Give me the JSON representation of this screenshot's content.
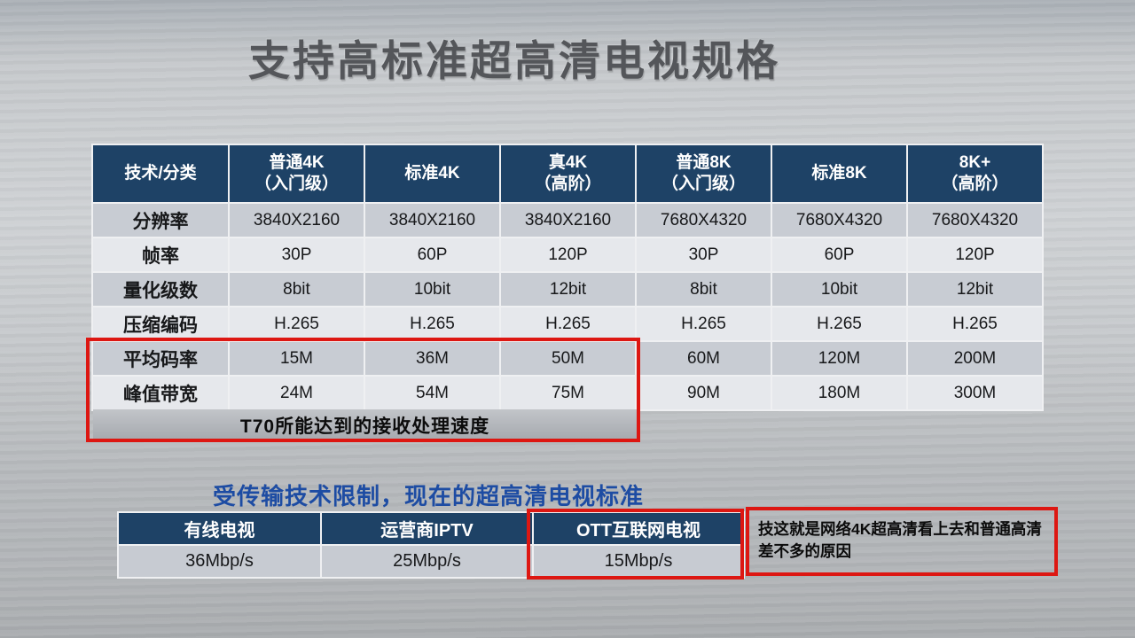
{
  "slide": {
    "title": "支持高标准超高清电视规格"
  },
  "colors": {
    "header_navy": "#1e4266",
    "band_dark": "#c8ccd3",
    "band_light": "#e6e8ec",
    "highlight_red": "#dd1712",
    "caption_blue": "#1d4ca3",
    "background_gray": "#c6c9cc"
  },
  "spec_table": {
    "corner_label": "技术/分类",
    "columns": [
      "普通4K\n（入门级）",
      "标准4K",
      "真4K\n（高阶）",
      "普通8K\n（入门级）",
      "标准8K",
      "8K+\n（高阶）"
    ],
    "rows": [
      {
        "label": "分辨率",
        "values": [
          "3840X2160",
          "3840X2160",
          "3840X2160",
          "7680X4320",
          "7680X4320",
          "7680X4320"
        ]
      },
      {
        "label": "帧率",
        "values": [
          "30P",
          "60P",
          "120P",
          "30P",
          "60P",
          "120P"
        ]
      },
      {
        "label": "量化级数",
        "values": [
          "8bit",
          "10bit",
          "12bit",
          "8bit",
          "10bit",
          "12bit"
        ]
      },
      {
        "label": "压缩编码",
        "values": [
          "H.265",
          "H.265",
          "H.265",
          "H.265",
          "H.265",
          "H.265"
        ]
      },
      {
        "label": "平均码率",
        "values": [
          "15M",
          "36M",
          "50M",
          "60M",
          "120M",
          "200M"
        ]
      },
      {
        "label": "峰值带宽",
        "values": [
          "24M",
          "54M",
          "75M",
          "90M",
          "180M",
          "300M"
        ]
      }
    ],
    "merged_note": "T70所能达到的接收处理速度"
  },
  "caption": "受传输技术限制，现在的超高清电视标准",
  "bandwidth_table": {
    "columns": [
      "有线电视",
      "运营商IPTV",
      "OTT互联网电视"
    ],
    "values": [
      "36Mbp/s",
      "25Mbp/s",
      "15Mbp/s"
    ]
  },
  "annotation": "技这就是网络4K超高清看上去和普通高清差不多的原因"
}
